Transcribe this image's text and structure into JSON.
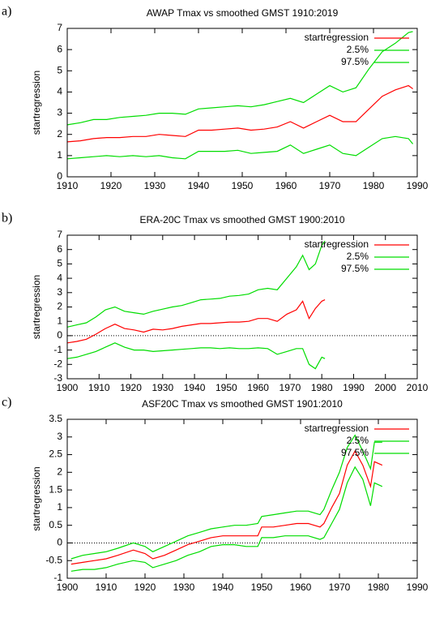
{
  "chart_data": [
    {
      "type": "line",
      "label": "a)",
      "title": "AWAP Tmax vs smoothed GMST 1910:2019",
      "ylabel": "startregression",
      "x": [
        1910,
        1913,
        1916,
        1919,
        1922,
        1925,
        1928,
        1931,
        1934,
        1937,
        1940,
        1943,
        1946,
        1949,
        1952,
        1955,
        1958,
        1961,
        1964,
        1967,
        1970,
        1973,
        1976,
        1979,
        1982,
        1985,
        1988,
        1989
      ],
      "series": [
        {
          "name": "startregression",
          "color": "#ff0000",
          "values": [
            1.65,
            1.7,
            1.8,
            1.85,
            1.85,
            1.9,
            1.9,
            2.0,
            1.95,
            1.9,
            2.2,
            2.2,
            2.25,
            2.3,
            2.2,
            2.25,
            2.35,
            2.6,
            2.3,
            2.6,
            2.9,
            2.6,
            2.6,
            3.2,
            3.8,
            4.1,
            4.3,
            4.15
          ]
        },
        {
          "name": "2.5%",
          "color": "#00dd00",
          "values": [
            0.85,
            0.9,
            0.95,
            1.0,
            0.95,
            1.0,
            0.95,
            1.0,
            0.9,
            0.85,
            1.2,
            1.2,
            1.2,
            1.25,
            1.1,
            1.15,
            1.2,
            1.5,
            1.1,
            1.3,
            1.5,
            1.1,
            1.0,
            1.4,
            1.8,
            1.9,
            1.8,
            1.55
          ]
        },
        {
          "name": "97.5%",
          "color": "#00dd00",
          "values": [
            2.45,
            2.55,
            2.7,
            2.7,
            2.8,
            2.85,
            2.9,
            3.0,
            3.0,
            2.95,
            3.2,
            3.25,
            3.3,
            3.35,
            3.3,
            3.4,
            3.55,
            3.7,
            3.5,
            3.9,
            4.3,
            4.0,
            4.2,
            5.1,
            5.9,
            6.3,
            6.8,
            6.85
          ]
        }
      ],
      "xlim": [
        1910,
        1990
      ],
      "xticks": [
        1910,
        1920,
        1930,
        1940,
        1950,
        1960,
        1970,
        1980,
        1990
      ],
      "ylim": [
        0,
        7
      ],
      "yticks": [
        0,
        1,
        2,
        3,
        4,
        5,
        6,
        7
      ],
      "zero_line": false,
      "legend": "top-right"
    },
    {
      "type": "line",
      "label": "b)",
      "title": "ERA-20C Tmax vs smoothed GMST 1900:2010",
      "ylabel": "startregression",
      "x": [
        1900,
        1903,
        1906,
        1909,
        1912,
        1915,
        1918,
        1921,
        1924,
        1927,
        1930,
        1933,
        1936,
        1939,
        1942,
        1945,
        1948,
        1951,
        1954,
        1957,
        1960,
        1963,
        1966,
        1969,
        1972,
        1974,
        1976,
        1978,
        1980,
        1981
      ],
      "series": [
        {
          "name": "startregression",
          "color": "#ff0000",
          "values": [
            -0.5,
            -0.4,
            -0.25,
            0.1,
            0.5,
            0.8,
            0.5,
            0.4,
            0.25,
            0.45,
            0.4,
            0.5,
            0.65,
            0.75,
            0.85,
            0.85,
            0.9,
            0.95,
            0.95,
            1.0,
            1.2,
            1.2,
            1.0,
            1.5,
            1.8,
            2.4,
            1.2,
            1.9,
            2.4,
            2.5
          ]
        },
        {
          "name": "2.5%",
          "color": "#00dd00",
          "values": [
            -1.6,
            -1.5,
            -1.3,
            -1.1,
            -0.8,
            -0.5,
            -0.8,
            -1.0,
            -1.0,
            -1.1,
            -1.05,
            -1.0,
            -0.95,
            -0.9,
            -0.85,
            -0.85,
            -0.9,
            -0.85,
            -0.9,
            -0.9,
            -0.85,
            -0.9,
            -1.3,
            -1.1,
            -0.9,
            -0.9,
            -2.0,
            -2.3,
            -1.5,
            -1.6
          ]
        },
        {
          "name": "97.5%",
          "color": "#00dd00",
          "values": [
            0.6,
            0.75,
            0.9,
            1.3,
            1.8,
            2.0,
            1.7,
            1.6,
            1.5,
            1.7,
            1.85,
            2.0,
            2.1,
            2.3,
            2.5,
            2.55,
            2.6,
            2.75,
            2.8,
            2.9,
            3.2,
            3.3,
            3.2,
            4.0,
            4.8,
            5.6,
            4.6,
            5.0,
            6.3,
            6.6
          ]
        }
      ],
      "xlim": [
        1900,
        2010
      ],
      "xticks": [
        1900,
        1910,
        1920,
        1930,
        1940,
        1950,
        1960,
        1970,
        1980,
        1990,
        2000,
        2010
      ],
      "ylim": [
        -3,
        7
      ],
      "yticks": [
        -3,
        -2,
        -1,
        0,
        1,
        2,
        3,
        4,
        5,
        6,
        7
      ],
      "zero_line": true,
      "legend": "top-right"
    },
    {
      "type": "line",
      "label": "c)",
      "title": "ASF20C Tmax vs smoothed GMST 1901:2010",
      "ylabel": "startregression",
      "x": [
        1901,
        1904,
        1907,
        1910,
        1913,
        1917,
        1920,
        1922,
        1925,
        1928,
        1931,
        1934,
        1937,
        1940,
        1943,
        1946,
        1949,
        1950,
        1953,
        1956,
        1959,
        1962,
        1965,
        1966,
        1968,
        1970,
        1972,
        1974,
        1976,
        1978,
        1979,
        1981
      ],
      "series": [
        {
          "name": "startregression",
          "color": "#ff0000",
          "values": [
            -0.6,
            -0.55,
            -0.5,
            -0.45,
            -0.35,
            -0.2,
            -0.3,
            -0.45,
            -0.35,
            -0.2,
            -0.05,
            0.05,
            0.15,
            0.2,
            0.2,
            0.2,
            0.2,
            0.45,
            0.45,
            0.5,
            0.55,
            0.55,
            0.45,
            0.55,
            1.0,
            1.4,
            2.2,
            2.6,
            2.2,
            1.6,
            2.3,
            2.2
          ]
        },
        {
          "name": "2.5%",
          "color": "#00dd00",
          "values": [
            -0.8,
            -0.75,
            -0.75,
            -0.7,
            -0.6,
            -0.5,
            -0.55,
            -0.7,
            -0.6,
            -0.5,
            -0.35,
            -0.25,
            -0.1,
            -0.05,
            -0.05,
            -0.1,
            -0.1,
            0.15,
            0.15,
            0.2,
            0.2,
            0.2,
            0.1,
            0.15,
            0.55,
            0.95,
            1.7,
            2.15,
            1.8,
            1.05,
            1.7,
            1.6
          ]
        },
        {
          "name": "97.5%",
          "color": "#00dd00",
          "values": [
            -0.45,
            -0.35,
            -0.3,
            -0.25,
            -0.15,
            0.0,
            -0.1,
            -0.25,
            -0.1,
            0.05,
            0.2,
            0.3,
            0.4,
            0.45,
            0.5,
            0.5,
            0.55,
            0.75,
            0.8,
            0.85,
            0.9,
            0.9,
            0.8,
            0.95,
            1.5,
            2.0,
            2.7,
            3.05,
            2.6,
            2.1,
            2.85,
            2.85
          ]
        }
      ],
      "xlim": [
        1900,
        1990
      ],
      "xticks": [
        1900,
        1910,
        1920,
        1930,
        1940,
        1950,
        1960,
        1970,
        1980,
        1990
      ],
      "ylim": [
        -1,
        3.5
      ],
      "yticks": [
        -1,
        -0.5,
        0,
        0.5,
        1,
        1.5,
        2,
        2.5,
        3,
        3.5
      ],
      "zero_line": true,
      "legend": "top-right"
    }
  ]
}
